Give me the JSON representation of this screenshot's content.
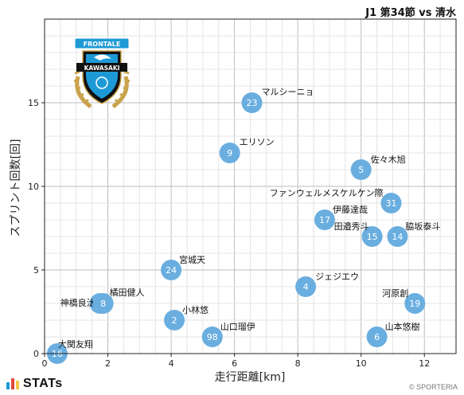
{
  "header": {
    "match_title": "J1 第34節 vs 清水"
  },
  "footer": {
    "brand": "STATs",
    "copyright": "© SPORTERIA"
  },
  "crest": {
    "banner_text": "FRONTALE",
    "name_text": "KAWASAKI",
    "colors": {
      "primary": "#1d9ad6",
      "dark": "#111111",
      "gold": "#c9a24a"
    }
  },
  "colors": {
    "point": "#6aaee0",
    "grid": "#d8d8d8",
    "axis": "#222222",
    "stats_bars": [
      "#1d9ad6",
      "#e24a3b",
      "#f2c744"
    ]
  },
  "chart_data": {
    "type": "scatter",
    "xlabel": "走行距離[km]",
    "ylabel": "スプリント回数[回]",
    "xlim": [
      0,
      13
    ],
    "ylim": [
      0,
      20
    ],
    "x_ticks": [
      0,
      2,
      4,
      6,
      8,
      10,
      12
    ],
    "y_ticks": [
      0,
      5,
      10,
      15
    ],
    "grid": true,
    "points": [
      {
        "number": "16",
        "name": "大関友翔",
        "x": 0.4,
        "y": 0
      },
      {
        "number": "27",
        "name": "神橋良汰",
        "x": 1.75,
        "y": 3
      },
      {
        "number": "8",
        "name": "橘田健人",
        "x": 1.85,
        "y": 3
      },
      {
        "number": "24",
        "name": "宮城天",
        "x": 4.0,
        "y": 5
      },
      {
        "number": "2",
        "name": "小林悠",
        "x": 4.1,
        "y": 2
      },
      {
        "number": "98",
        "name": "山口瑠伊",
        "x": 5.3,
        "y": 1
      },
      {
        "number": "9",
        "name": "エリソン",
        "x": 5.85,
        "y": 12
      },
      {
        "number": "23",
        "name": "マルシーニョ",
        "x": 6.55,
        "y": 15
      },
      {
        "number": "4",
        "name": "ジェジエウ",
        "x": 8.25,
        "y": 4
      },
      {
        "number": "17",
        "name": "伊藤達哉",
        "x": 8.85,
        "y": 8
      },
      {
        "number": "5",
        "name": "佐々木旭",
        "x": 10.0,
        "y": 11
      },
      {
        "number": "15",
        "name": "田邉秀斗",
        "x": 10.35,
        "y": 7
      },
      {
        "number": "31",
        "name": "ファンウェルメスケルケン際",
        "x": 10.95,
        "y": 9
      },
      {
        "number": "14",
        "name": "脇坂泰斗",
        "x": 11.15,
        "y": 7
      },
      {
        "number": "6",
        "name": "山本悠樹",
        "x": 10.5,
        "y": 1
      },
      {
        "number": "19",
        "name": "河原創",
        "x": 11.7,
        "y": 3
      }
    ]
  }
}
